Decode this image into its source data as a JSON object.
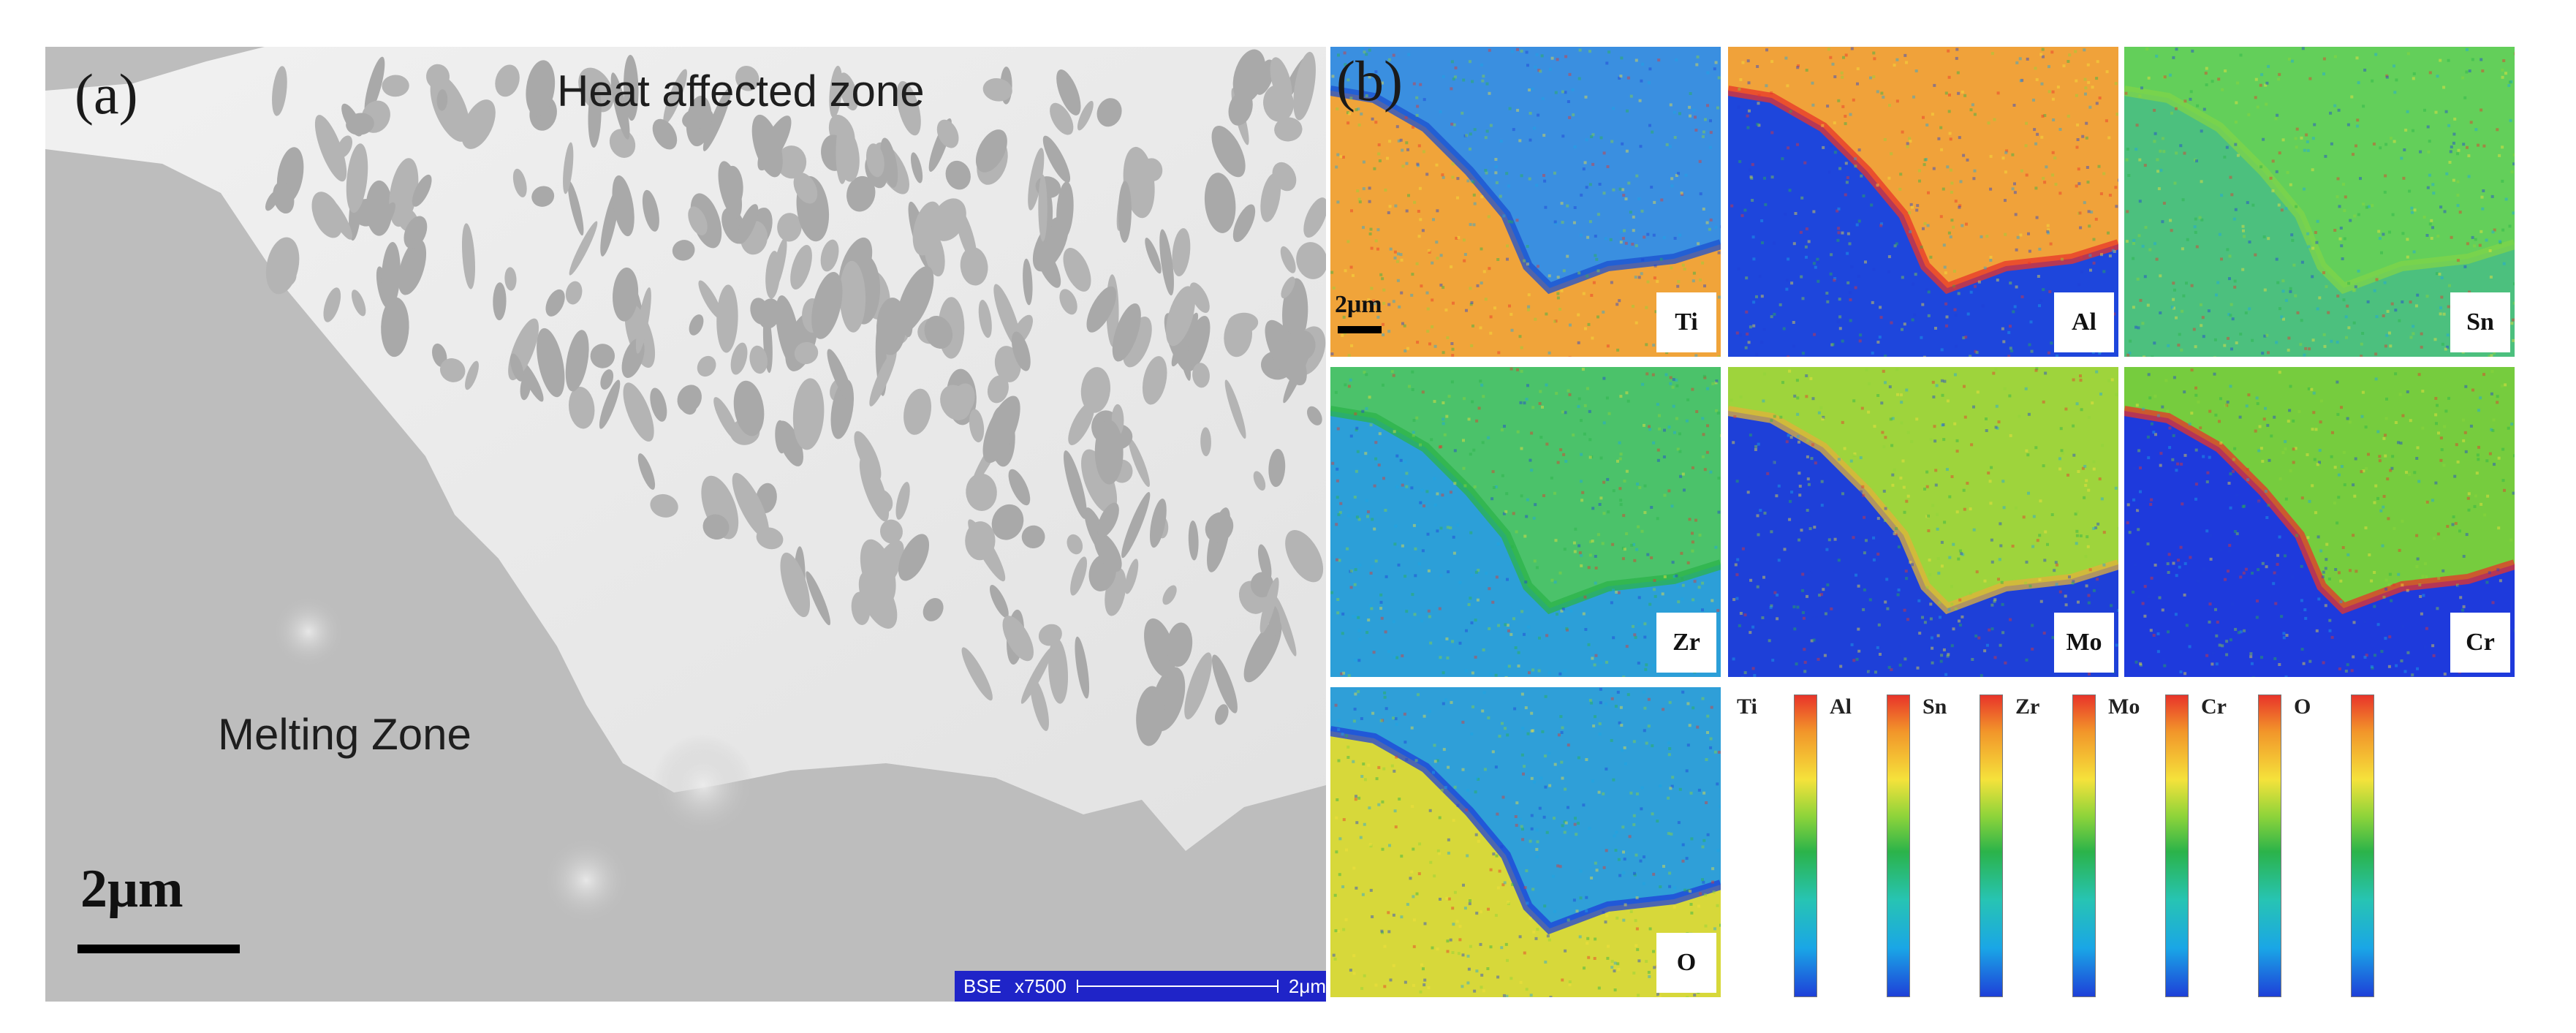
{
  "panel_a": {
    "label": "(a)",
    "heat_zone_label": "Heat affected zone",
    "melting_zone_label": "Melting Zone",
    "scale_text": "2μm",
    "bse_mode": "BSE",
    "bse_magnification": "x7500",
    "bse_scale": "2μm"
  },
  "panel_b": {
    "label": "(b)",
    "scale_text": "2μm",
    "maps": [
      {
        "element": "Ti"
      },
      {
        "element": "Al"
      },
      {
        "element": "Sn"
      },
      {
        "element": "Zr"
      },
      {
        "element": "Mo"
      },
      {
        "element": "Cr"
      },
      {
        "element": "O"
      }
    ],
    "legend": [
      "Ti",
      "Al",
      "Sn",
      "Zr",
      "Mo",
      "Cr",
      "O"
    ]
  },
  "colors": {
    "bse_bar": "#1f24c8",
    "map_high": "#e8342a",
    "map_mid": "#2bb34a",
    "map_low": "#1e40d8"
  }
}
